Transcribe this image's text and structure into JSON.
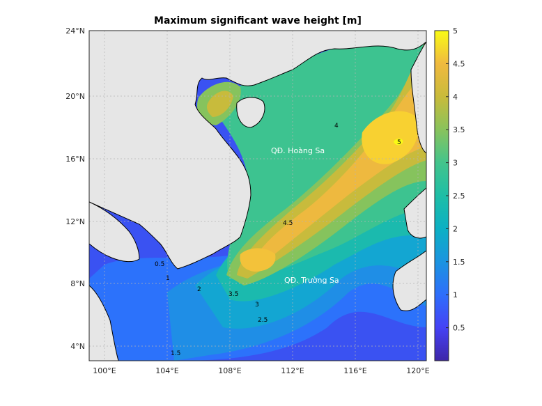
{
  "map": {
    "title": "Maximum significant wave height [m]",
    "lon_range": [
      99.3,
      120.6
    ],
    "lat_range": [
      3.1,
      24.1
    ],
    "x_ticks": [
      "100°E",
      "104°E",
      "108°E",
      "112°E",
      "116°E",
      "120°E"
    ],
    "y_ticks": [
      "4°N",
      "8°N",
      "12°N",
      "16°N",
      "20°N",
      "24°N"
    ],
    "colorbar": {
      "min": 0,
      "max": 5,
      "ticks": [
        "0.5",
        "1",
        "1.5",
        "2",
        "2.5",
        "3",
        "3.5",
        "4",
        "4.5",
        "5"
      ],
      "colormap": "parula",
      "colors": [
        "#3e26a8",
        "#4542f5",
        "#2e6efb",
        "#1b94e0",
        "#0cb0c4",
        "#1ebea6",
        "#43c48c",
        "#89c35c",
        "#c9bb3b",
        "#f0ba3f",
        "#fade30",
        "#f9fb15"
      ]
    },
    "land_color": "#e6e6e6",
    "grid": true,
    "place_labels": [
      {
        "text": "QĐ. Hoàng Sa"
      },
      {
        "text": "QĐ. Trường Sa"
      }
    ],
    "contour_labels": [
      "0.5",
      "1",
      "1.5",
      "2",
      "2.5",
      "3",
      "3.5",
      "4",
      "4.5",
      "5"
    ]
  }
}
